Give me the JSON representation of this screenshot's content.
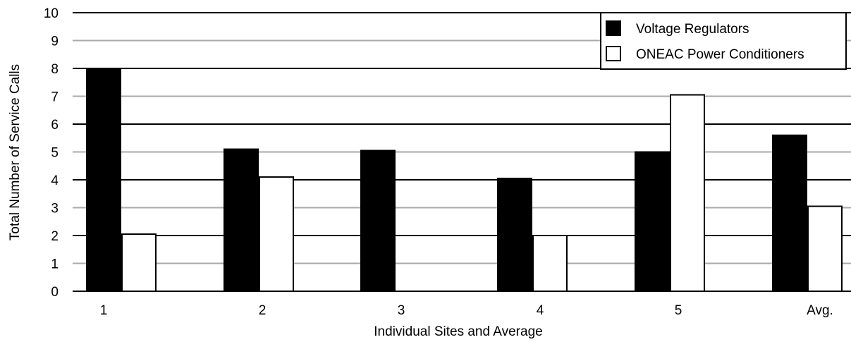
{
  "chart_data": {
    "type": "bar",
    "title": "",
    "xlabel": "Individual Sites and Average",
    "ylabel": "Total Number of Service Calls",
    "ylim": [
      0,
      10
    ],
    "yticks": [
      0,
      1,
      2,
      3,
      4,
      5,
      6,
      7,
      8,
      9,
      10
    ],
    "categories": [
      "1",
      "2",
      "3",
      "4",
      "5",
      "Avg."
    ],
    "series": [
      {
        "name": "Voltage Regulators",
        "values": [
          8,
          5.1,
          5.05,
          4.05,
          5,
          5.6
        ],
        "color": "#000000"
      },
      {
        "name": "ONEAC Power Conditioners",
        "values": [
          2.05,
          4.1,
          0,
          2,
          7.05,
          3.05
        ],
        "color": "#ffffff"
      }
    ],
    "grid": true,
    "legend_position": "top-right"
  }
}
